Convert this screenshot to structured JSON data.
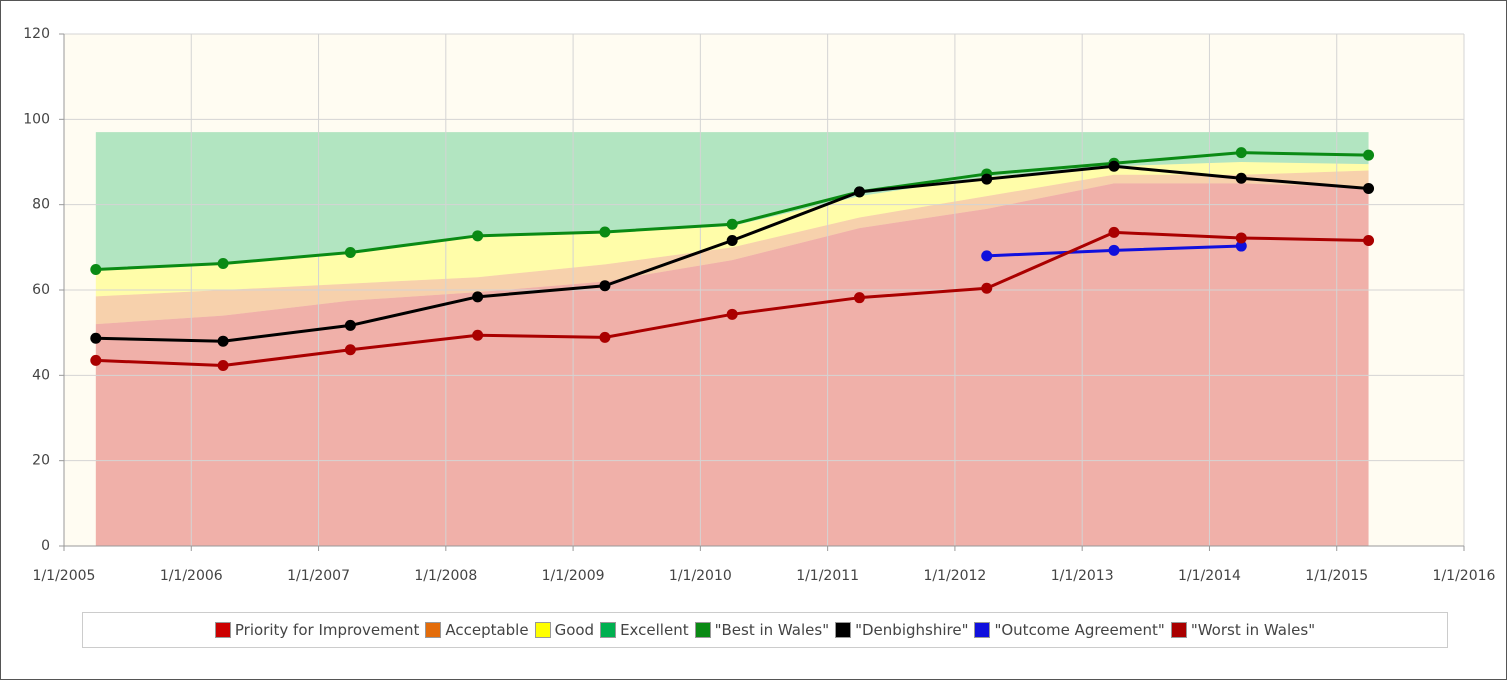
{
  "chart_data": {
    "type": "line",
    "x": [
      2005.25,
      2006.25,
      2007.25,
      2008.25,
      2009.25,
      2010.25,
      2011.25,
      2012.25,
      2013.25,
      2014.25,
      2015.25
    ],
    "xlim": [
      2005,
      2016
    ],
    "xticks": [
      {
        "value": 2005,
        "label": "1/1/2005"
      },
      {
        "value": 2006,
        "label": "1/1/2006"
      },
      {
        "value": 2007,
        "label": "1/1/2007"
      },
      {
        "value": 2008,
        "label": "1/1/2008"
      },
      {
        "value": 2009,
        "label": "1/1/2009"
      },
      {
        "value": 2010,
        "label": "1/1/2010"
      },
      {
        "value": 2011,
        "label": "1/1/2011"
      },
      {
        "value": 2012,
        "label": "1/1/2012"
      },
      {
        "value": 2013,
        "label": "1/1/2013"
      },
      {
        "value": 2014,
        "label": "1/1/2014"
      },
      {
        "value": 2015,
        "label": "1/1/2015"
      },
      {
        "value": 2016,
        "label": "1/1/2016"
      }
    ],
    "ylim": [
      0,
      120
    ],
    "yticks": [
      0,
      20,
      40,
      60,
      80,
      100,
      120
    ],
    "grid": true,
    "legend": "bottom",
    "series": [
      {
        "name": "Priority for Improvement",
        "type": "area",
        "color": "#cc0000",
        "values": [
          52,
          54,
          57.5,
          59.5,
          62,
          67,
          74.5,
          79,
          85,
          85,
          84
        ]
      },
      {
        "name": "Acceptable",
        "type": "area",
        "color": "#e36c0a",
        "values": [
          6.5,
          6,
          4,
          3.5,
          4,
          3,
          2.5,
          3,
          2,
          2,
          4
        ]
      },
      {
        "name": "Good",
        "type": "area",
        "color": "#ffff00",
        "values": [
          6,
          6,
          7,
          9.5,
          7.5,
          5,
          5,
          4.5,
          2,
          3,
          1.5
        ]
      },
      {
        "name": "Excellent",
        "type": "area",
        "color": "#00b050",
        "values": [
          32.5,
          31,
          28.5,
          24.5,
          23.5,
          22,
          15,
          10.5,
          8,
          7,
          7.5
        ]
      },
      {
        "name": "\"Best in Wales\"",
        "type": "line",
        "color": "#0a8a14",
        "values": [
          64.8,
          66.2,
          68.8,
          72.7,
          73.6,
          75.4,
          83,
          87.2,
          89.7,
          92.2,
          91.6
        ]
      },
      {
        "name": "\"Denbighshire\"",
        "type": "line",
        "color": "#000000",
        "values": [
          48.7,
          48,
          51.7,
          58.4,
          61,
          71.6,
          83,
          86,
          89,
          86.2,
          83.8
        ]
      },
      {
        "name": "\"Outcome Agreement\"",
        "type": "line",
        "color": "#1010dd",
        "values": [
          null,
          null,
          null,
          null,
          null,
          null,
          null,
          68,
          69.3,
          70.3,
          null
        ]
      },
      {
        "name": "\"Worst in Wales\"",
        "type": "line",
        "color": "#aa0000",
        "values": [
          43.5,
          42.3,
          46,
          49.4,
          48.9,
          54.3,
          58.2,
          60.4,
          73.5,
          72.2,
          71.6
        ]
      }
    ]
  }
}
